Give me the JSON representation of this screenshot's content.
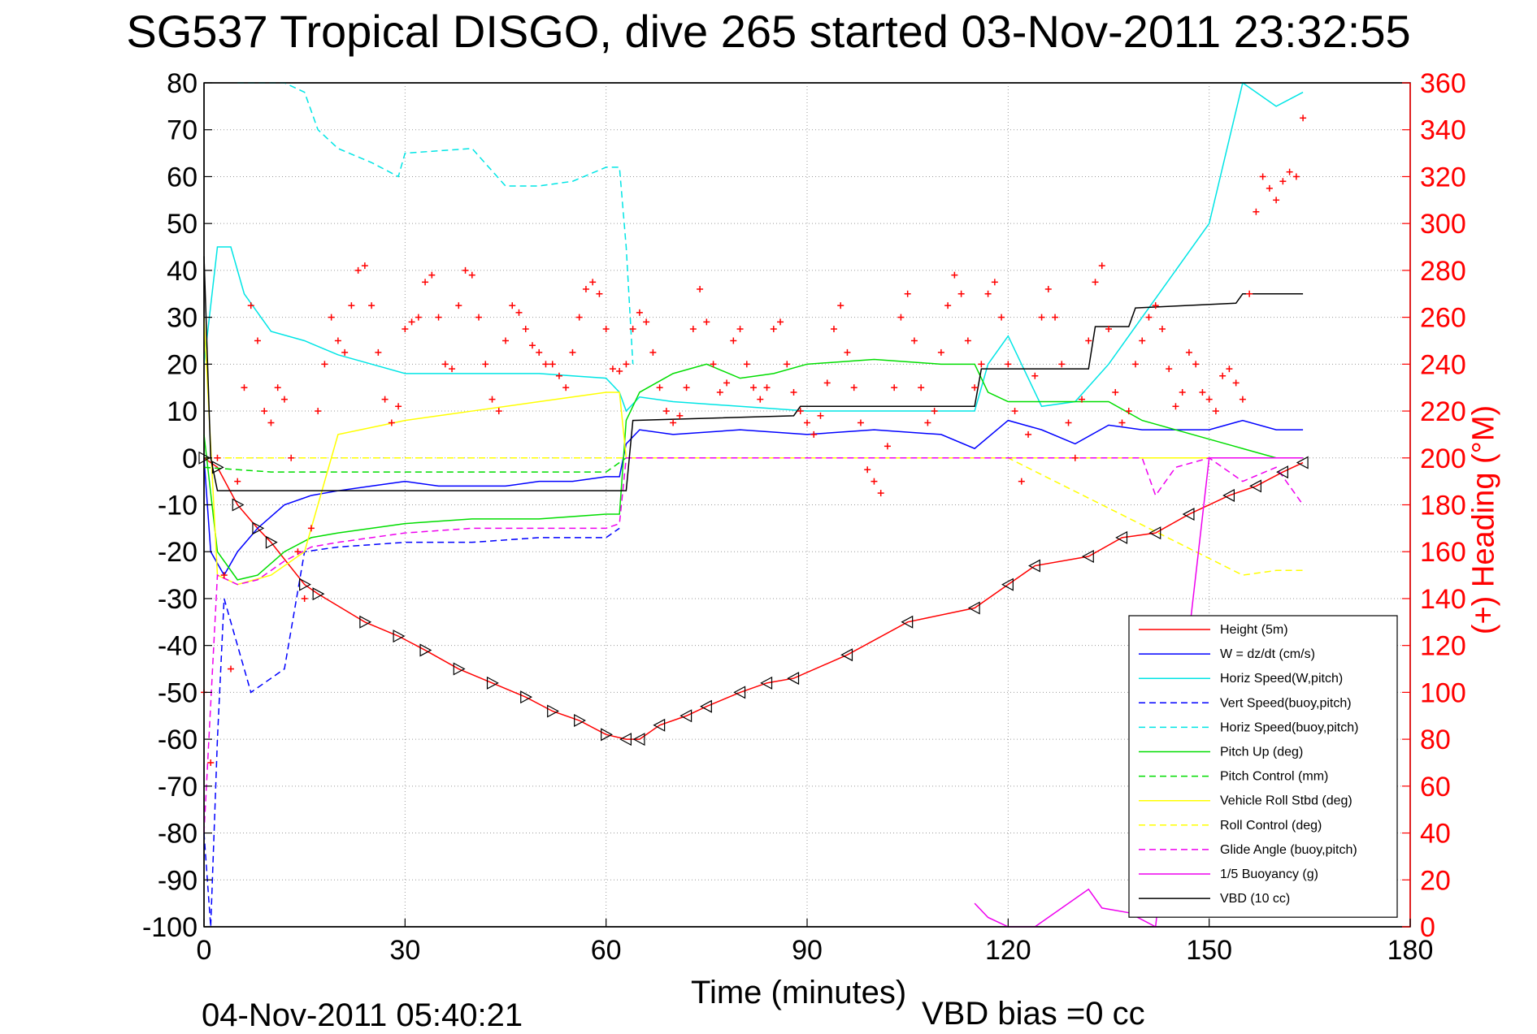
{
  "title": "SG537 Tropical DISGO, dive 265 started 03-Nov-2011 23:32:55",
  "footer": {
    "date": "04-Nov-2011 05:40:21",
    "vbd_bias": "VBD bias =0 cc"
  },
  "chart_data": {
    "type": "line",
    "title": "SG537 Tropical DISGO, dive 265 started 03-Nov-2011 23:32:55",
    "xlabel": "Time (minutes)",
    "ylabel": "",
    "ylabel_right": "(+) Heading (°M)",
    "xlim": [
      0,
      180
    ],
    "ylim": [
      -100,
      80
    ],
    "ylim_right": [
      0,
      360
    ],
    "xticks": [
      0,
      30,
      60,
      90,
      120,
      150,
      180
    ],
    "yticks": [
      -100,
      -90,
      -80,
      -70,
      -60,
      -50,
      -40,
      -30,
      -20,
      -10,
      0,
      10,
      20,
      30,
      40,
      50,
      60,
      70,
      80
    ],
    "yticks_right": [
      0,
      20,
      40,
      60,
      80,
      100,
      120,
      140,
      160,
      180,
      200,
      220,
      240,
      260,
      280,
      300,
      320,
      340,
      360
    ],
    "grid": true,
    "legend_position": "bottom-right",
    "colors": {
      "height": "#ff0000",
      "w": "#0000ff",
      "horiz_speed_w": "#00e5e5",
      "vert_speed_buoy": "#0000ff",
      "horiz_speed_buoy": "#00e5e5",
      "pitch_up": "#00dd00",
      "pitch_control": "#00dd00",
      "roll": "#ffff00",
      "roll_control": "#ffff00",
      "glide": "#ee00ee",
      "buoyancy": "#ee00ee",
      "vbd": "#000000",
      "heading": "#ff0000"
    },
    "series": [
      {
        "name": "Height (5m)",
        "style": "solid",
        "color": "#ff0000",
        "x": [
          0,
          2,
          5,
          8,
          10,
          15,
          17,
          24,
          29,
          33,
          38,
          43,
          48,
          52,
          56,
          60,
          63,
          65,
          68,
          72,
          75,
          80,
          84,
          88,
          96,
          105,
          115,
          120,
          124,
          132,
          137,
          142,
          147,
          153,
          157,
          161,
          164
        ],
        "y": [
          0,
          -2,
          -10,
          -15,
          -18,
          -27,
          -29,
          -35,
          -38,
          -41,
          -45,
          -48,
          -51,
          -54,
          -56,
          -59,
          -60,
          -60,
          -57,
          -55,
          -53,
          -50,
          -48,
          -47,
          -42,
          -35,
          -32,
          -27,
          -23,
          -21,
          -17,
          -16,
          -12,
          -8,
          -6,
          -3,
          -1
        ]
      },
      {
        "name": "W = dz/dt (cm/s)",
        "style": "solid",
        "color": "#0000ff",
        "x": [
          0,
          1,
          3,
          5,
          8,
          12,
          16,
          20,
          25,
          30,
          35,
          40,
          45,
          50,
          55,
          60,
          62,
          63,
          65,
          70,
          80,
          90,
          100,
          110,
          115,
          120,
          125,
          130,
          135,
          140,
          150,
          155,
          160,
          164
        ],
        "y": [
          0,
          -20,
          -25,
          -20,
          -15,
          -10,
          -8,
          -7,
          -6,
          -5,
          -6,
          -6,
          -6,
          -5,
          -5,
          -4,
          -4,
          3,
          6,
          5,
          6,
          5,
          6,
          5,
          2,
          8,
          6,
          3,
          7,
          6,
          6,
          8,
          6,
          6
        ]
      },
      {
        "name": "Horiz Speed(W,pitch)",
        "style": "solid",
        "color": "#00e5e5",
        "x": [
          0,
          2,
          4,
          6,
          10,
          15,
          20,
          25,
          30,
          40,
          50,
          60,
          62,
          63,
          65,
          70,
          80,
          90,
          100,
          110,
          115,
          117,
          120,
          125,
          130,
          135,
          140,
          150,
          155,
          160,
          164
        ],
        "y": [
          20,
          45,
          45,
          35,
          27,
          25,
          22,
          20,
          18,
          18,
          18,
          17,
          14,
          10,
          13,
          12,
          11,
          10,
          10,
          10,
          10,
          20,
          26,
          11,
          12,
          20,
          30,
          50,
          80,
          75,
          78
        ]
      },
      {
        "name": "Vert Speed(buoy,pitch)",
        "style": "dashed",
        "color": "#0000ff",
        "x": [
          0,
          1,
          2,
          3,
          5,
          7,
          9,
          12,
          15,
          20,
          30,
          40,
          50,
          60,
          62
        ],
        "y": [
          -80,
          -100,
          -60,
          -30,
          -40,
          -50,
          -48,
          -45,
          -20,
          -19,
          -18,
          -18,
          -17,
          -17,
          -15
        ]
      },
      {
        "name": "Horiz Speed(buoy,pitch)",
        "style": "dashed",
        "color": "#00e5e5",
        "x": [
          5,
          8,
          12,
          15,
          17,
          20,
          25,
          29,
          30,
          40,
          45,
          50,
          55,
          60,
          62,
          63,
          64
        ],
        "y": [
          80,
          80,
          80,
          78,
          70,
          66,
          63,
          60,
          65,
          66,
          58,
          58,
          59,
          62,
          62,
          45,
          20
        ]
      },
      {
        "name": "Pitch Up (deg)",
        "style": "solid",
        "color": "#00dd00",
        "x": [
          0,
          2,
          5,
          8,
          12,
          16,
          20,
          25,
          30,
          40,
          50,
          60,
          62,
          63,
          65,
          70,
          75,
          80,
          85,
          90,
          100,
          110,
          115,
          117,
          120,
          125,
          130,
          135,
          140,
          150,
          155,
          160,
          164
        ],
        "y": [
          5,
          -20,
          -26,
          -25,
          -20,
          -17,
          -16,
          -15,
          -14,
          -13,
          -13,
          -12,
          -12,
          8,
          14,
          18,
          20,
          17,
          18,
          20,
          21,
          20,
          20,
          14,
          12,
          12,
          12,
          12,
          8,
          4,
          2,
          0,
          0
        ]
      },
      {
        "name": "Pitch Control (mm)",
        "style": "dashed",
        "color": "#00dd00",
        "x": [
          0,
          10,
          30,
          60,
          63,
          90,
          120,
          140,
          164
        ],
        "y": [
          -2,
          -3,
          -3,
          -3,
          0,
          0,
          0,
          0,
          0
        ]
      },
      {
        "name": "Vehicle Roll Stbd (deg)",
        "style": "solid",
        "color": "#ffff00",
        "x": [
          0,
          2,
          5,
          10,
          15,
          20,
          30,
          40,
          50,
          60,
          62,
          63,
          70,
          90,
          120,
          140,
          150,
          164
        ],
        "y": [
          30,
          -25,
          -27,
          -25,
          -20,
          5,
          8,
          10,
          12,
          14,
          14,
          0,
          0,
          0,
          0,
          0,
          0,
          0
        ]
      },
      {
        "name": "Roll Control (deg)",
        "style": "dashed",
        "color": "#ffff00",
        "x": [
          0,
          30,
          60,
          63,
          90,
          120,
          155,
          160,
          164
        ],
        "y": [
          0,
          0,
          0,
          0,
          0,
          0,
          -25,
          -24,
          -24
        ]
      },
      {
        "name": "Glide Angle (buoy,pitch)",
        "style": "dashed",
        "color": "#ee00ee",
        "x": [
          0,
          2,
          5,
          8,
          12,
          16,
          20,
          30,
          40,
          50,
          60,
          62,
          63,
          90,
          120,
          140,
          142,
          145,
          150,
          155,
          160,
          164
        ],
        "y": [
          -80,
          -25,
          -27,
          -26,
          -22,
          -19,
          -18,
          -16,
          -15,
          -15,
          -15,
          -14,
          0,
          0,
          0,
          0,
          -8,
          -2,
          0,
          -5,
          -2,
          -10
        ]
      },
      {
        "name": "1/5 Buoyancy (g)",
        "style": "solid",
        "color": "#ee00ee",
        "x": [
          115,
          117,
          120,
          124,
          132,
          134,
          138,
          142,
          150,
          160,
          164
        ],
        "y": [
          -95,
          -98,
          -100,
          -100,
          -92,
          -96,
          -97,
          -100,
          0,
          0,
          0
        ]
      },
      {
        "name": "VBD (10 cc)",
        "style": "solid",
        "color": "#000000",
        "x": [
          0,
          1,
          2,
          63,
          64,
          88,
          89,
          115,
          116,
          132,
          133,
          138,
          139,
          154,
          155,
          164
        ],
        "y": [
          43,
          0,
          -7,
          -7,
          8,
          9,
          11,
          11,
          19,
          19,
          28,
          28,
          32,
          33,
          35,
          35
        ]
      }
    ],
    "heading_series": {
      "name": "(+) Heading",
      "marker": "+",
      "color": "#ff0000",
      "axis": "right",
      "x": [
        0,
        1,
        2,
        3,
        4,
        5,
        6,
        7,
        8,
        9,
        10,
        11,
        12,
        13,
        14,
        15,
        16,
        17,
        18,
        19,
        20,
        21,
        22,
        23,
        24,
        25,
        26,
        27,
        28,
        29,
        30,
        31,
        32,
        33,
        34,
        35,
        36,
        37,
        38,
        39,
        40,
        41,
        42,
        43,
        44,
        45,
        46,
        47,
        48,
        49,
        50,
        51,
        52,
        53,
        54,
        55,
        56,
        57,
        58,
        59,
        60,
        61,
        62,
        63,
        64,
        65,
        66,
        67,
        68,
        69,
        70,
        71,
        72,
        73,
        74,
        75,
        76,
        77,
        78,
        79,
        80,
        81,
        82,
        83,
        84,
        85,
        86,
        87,
        88,
        89,
        90,
        91,
        92,
        93,
        94,
        95,
        96,
        97,
        98,
        99,
        100,
        101,
        102,
        103,
        104,
        105,
        106,
        107,
        108,
        109,
        110,
        111,
        112,
        113,
        114,
        115,
        116,
        117,
        118,
        119,
        120,
        121,
        122,
        123,
        124,
        125,
        126,
        127,
        128,
        129,
        130,
        131,
        132,
        133,
        134,
        135,
        136,
        137,
        138,
        139,
        140,
        141,
        142,
        143,
        144,
        145,
        146,
        147,
        148,
        149,
        150,
        151,
        152,
        153,
        154,
        155,
        156,
        157,
        158,
        159,
        160,
        161,
        162,
        163,
        164
      ],
      "y": [
        100,
        70,
        200,
        150,
        110,
        190,
        230,
        265,
        250,
        220,
        215,
        230,
        225,
        200,
        160,
        140,
        170,
        220,
        240,
        260,
        250,
        245,
        265,
        280,
        282,
        265,
        245,
        225,
        215,
        222,
        255,
        258,
        260,
        275,
        278,
        260,
        240,
        238,
        265,
        280,
        278,
        260,
        240,
        225,
        220,
        250,
        265,
        262,
        255,
        248,
        245,
        240,
        240,
        235,
        230,
        245,
        260,
        272,
        275,
        270,
        255,
        238,
        237,
        240,
        255,
        262,
        258,
        245,
        230,
        220,
        215,
        218,
        230,
        255,
        272,
        258,
        240,
        228,
        232,
        250,
        255,
        240,
        230,
        225,
        230,
        255,
        258,
        240,
        228,
        220,
        215,
        210,
        218,
        232,
        255,
        265,
        245,
        230,
        215,
        195,
        190,
        185,
        205,
        230,
        260,
        270,
        250,
        230,
        215,
        220,
        245,
        265,
        278,
        270,
        250,
        230,
        240,
        270,
        275,
        260,
        240,
        220,
        190,
        210,
        235,
        260,
        272,
        260,
        240,
        215,
        200,
        225,
        250,
        275,
        282,
        255,
        228,
        215,
        220,
        240,
        250,
        260,
        265,
        255,
        238,
        222,
        228,
        245,
        240,
        228,
        225,
        220,
        235,
        238,
        232,
        225,
        270,
        305,
        320,
        315,
        310,
        318,
        322,
        320,
        345
      ]
    },
    "legend": [
      "Height (5m)",
      "W = dz/dt (cm/s)",
      "Horiz Speed(W,pitch)",
      "Vert Speed(buoy,pitch)",
      "Horiz Speed(buoy,pitch)",
      "Pitch Up (deg)",
      "Pitch Control (mm)",
      "Vehicle Roll Stbd (deg)",
      "Roll Control (deg)",
      "Glide Angle (buoy,pitch)",
      "1/5 Buoyancy (g)",
      "VBD (10 cc)"
    ]
  }
}
